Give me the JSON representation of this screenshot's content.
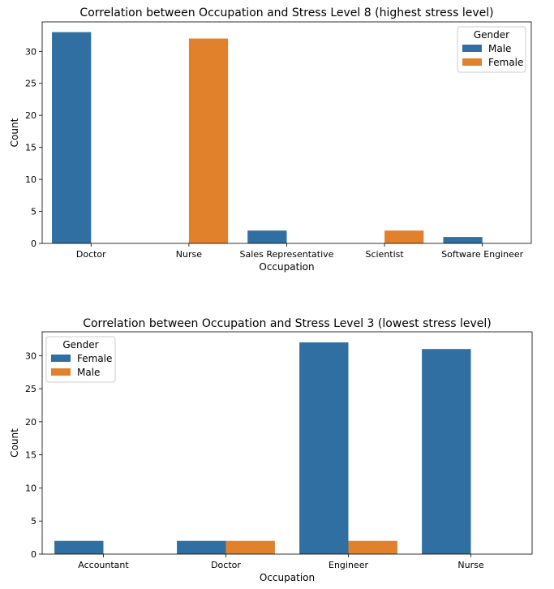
{
  "chart_data": [
    {
      "type": "bar",
      "title": "Correlation between Occupation and Stress Level 8 (highest stress level)",
      "xlabel": "Occupation",
      "ylabel": "Count",
      "categories": [
        "Doctor",
        "Nurse",
        "Sales Representative",
        "Scientist",
        "Software Engineer"
      ],
      "ylim": [
        0,
        34.6
      ],
      "yticks": [
        0,
        5,
        10,
        15,
        20,
        25,
        30
      ],
      "legend_title": "Gender",
      "legend_position": "top-right",
      "series": [
        {
          "name": "Male",
          "color": "#2f6fa1",
          "values": [
            33,
            0,
            2,
            0,
            1
          ]
        },
        {
          "name": "Female",
          "color": "#e1812c",
          "values": [
            0,
            32,
            0,
            2,
            0
          ]
        }
      ]
    },
    {
      "type": "bar",
      "title": "Correlation between Occupation and Stress Level 3 (lowest stress level)",
      "xlabel": "Occupation",
      "ylabel": "Count",
      "categories": [
        "Accountant",
        "Doctor",
        "Engineer",
        "Nurse"
      ],
      "ylim": [
        0,
        33.6
      ],
      "yticks": [
        0,
        5,
        10,
        15,
        20,
        25,
        30
      ],
      "legend_title": "Gender",
      "legend_position": "top-left",
      "series": [
        {
          "name": "Female",
          "color": "#2f6fa1",
          "values": [
            2,
            2,
            32,
            31
          ]
        },
        {
          "name": "Male",
          "color": "#e1812c",
          "values": [
            0,
            2,
            2,
            0
          ]
        }
      ]
    }
  ]
}
